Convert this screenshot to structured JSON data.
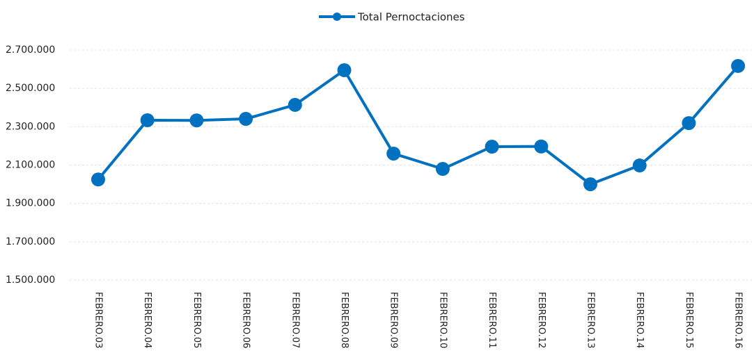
{
  "chart_data": {
    "type": "line",
    "categories": [
      "FEBRERO.03",
      "FEBRERO.04",
      "FEBRERO.05",
      "FEBRERO.06",
      "FEBRERO.07",
      "FEBRERO.08",
      "FEBRERO.09",
      "FEBRERO.10",
      "FEBRERO.11",
      "FEBRERO.12",
      "FEBRERO.13",
      "FEBRERO.14",
      "FEBRERO.15",
      "FEBRERO.16"
    ],
    "series": [
      {
        "name": "Total Pernoctaciones",
        "color": "#0070c0",
        "values": [
          2025000,
          2334000,
          2333000,
          2341000,
          2414000,
          2595000,
          2160000,
          2080000,
          2196000,
          2197000,
          2000000,
          2098000,
          2319000,
          2617000
        ]
      }
    ],
    "ylim": [
      1500000,
      2700000
    ],
    "yticks": [
      {
        "value": 1500000,
        "label": "1.500.000"
      },
      {
        "value": 1700000,
        "label": "1.700.000"
      },
      {
        "value": 1900000,
        "label": "1.900.000"
      },
      {
        "value": 2100000,
        "label": "2.100.000"
      },
      {
        "value": 2300000,
        "label": "2.300.000"
      },
      {
        "value": 2500000,
        "label": "2.500.000"
      },
      {
        "value": 2700000,
        "label": "2.700.000"
      }
    ],
    "grid": true,
    "legend": "top"
  }
}
